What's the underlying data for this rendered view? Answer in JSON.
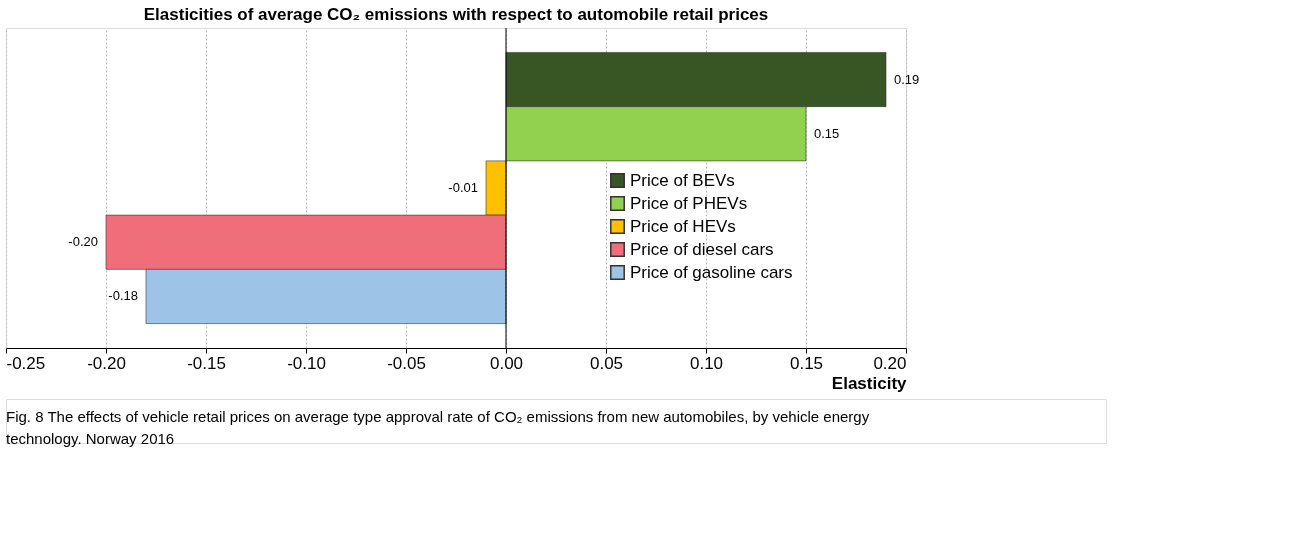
{
  "chart_data": {
    "type": "bar",
    "orientation": "horizontal",
    "title": "Elasticities of average CO₂ emissions with respect to automobile retail prices",
    "xlabel": "Elasticity",
    "categories": [
      null,
      null,
      null,
      null,
      null
    ],
    "series": [
      {
        "name": "Price of BEVs",
        "color": "#375623",
        "values": [
          0.19,
          null,
          null,
          null,
          null
        ],
        "value_labels": [
          "0.19",
          null,
          null,
          null,
          null
        ]
      },
      {
        "name": "Price of PHEVs",
        "color": "#92d050",
        "values": [
          null,
          0.15,
          null,
          null,
          null
        ],
        "value_labels": [
          null,
          "0.15",
          null,
          null,
          null
        ]
      },
      {
        "name": "Price of HEVs",
        "color": "#ffc000",
        "values": [
          null,
          null,
          -0.01,
          null,
          null
        ],
        "value_labels": [
          null,
          null,
          "-0.01",
          null,
          null
        ]
      },
      {
        "name": "Price of diesel cars",
        "color": "#f06e7a",
        "values": [
          null,
          null,
          null,
          -0.2,
          null
        ],
        "value_labels": [
          null,
          null,
          null,
          "-0.20",
          null
        ]
      },
      {
        "name": "Price of gasoline cars",
        "color": "#9dc3e6",
        "values": [
          null,
          null,
          null,
          null,
          -0.18
        ],
        "value_labels": [
          null,
          null,
          null,
          null,
          "-0.18"
        ]
      }
    ],
    "xlim": [
      -0.25,
      0.2
    ],
    "xticks": [
      {
        "value": -0.25,
        "label": "-0.25"
      },
      {
        "value": -0.2,
        "label": "-0.20"
      },
      {
        "value": -0.15,
        "label": "-0.15"
      },
      {
        "value": -0.1,
        "label": "-0.10"
      },
      {
        "value": -0.05,
        "label": "-0.05"
      },
      {
        "value": 0,
        "label": "0.00"
      },
      {
        "value": 0.05,
        "label": "0.05"
      },
      {
        "value": 0.1,
        "label": "0.10"
      },
      {
        "value": 0.15,
        "label": "0.15"
      },
      {
        "value": 0.2,
        "label": "0.20"
      }
    ],
    "grid": "x",
    "legend": "right",
    "tick_labels": "x",
    "annotations": [
      "Fig. 8 The effects of vehicle retail prices on average type approval rate of CO₂ emissions from new automobiles, by vehicle energy technology. Norway 2016"
    ]
  }
}
